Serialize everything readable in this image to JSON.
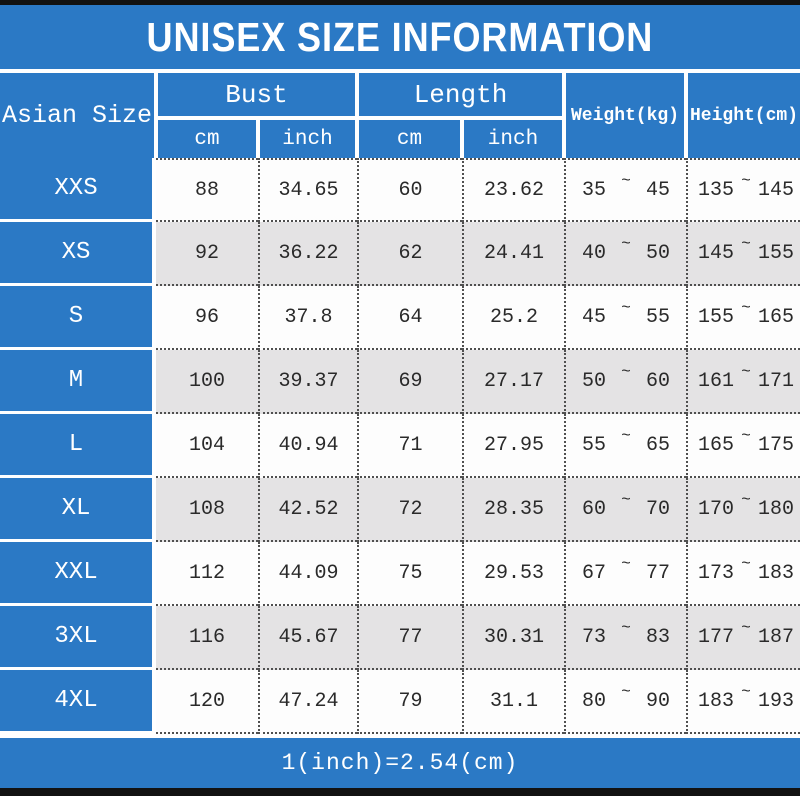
{
  "title": "UNISEX SIZE INFORMATION",
  "tilde": "~",
  "footer_note": "1(inch)=2.54(cm)",
  "colors": {
    "blue": "#2b79c5",
    "row_white": "#fdfdfd",
    "row_gray": "#e4e3e4",
    "bar_black": "#121212",
    "text": "#2a2a2a",
    "dot": "#4f4f4f"
  },
  "header": {
    "asian_size": "Asian Size",
    "bust": "Bust",
    "length": "Length",
    "cm": "cm",
    "inch": "inch",
    "weight": "Weight(kg)",
    "height": "Height(cm)"
  },
  "chart_data": {
    "type": "table",
    "title": "UNISEX SIZE INFORMATION",
    "columns": [
      "Asian Size",
      "Bust cm",
      "Bust inch",
      "Length cm",
      "Length inch",
      "Weight(kg) min",
      "Weight(kg) max",
      "Height(cm) min",
      "Height(cm) max"
    ],
    "rows": [
      {
        "size": "XXS",
        "bust_cm": "88",
        "bust_inch": "34.65",
        "length_cm": "60",
        "length_inch": "23.62",
        "weight_min": "35",
        "weight_max": "45",
        "height_min": "135",
        "height_max": "145"
      },
      {
        "size": "XS",
        "bust_cm": "92",
        "bust_inch": "36.22",
        "length_cm": "62",
        "length_inch": "24.41",
        "weight_min": "40",
        "weight_max": "50",
        "height_min": "145",
        "height_max": "155"
      },
      {
        "size": "S",
        "bust_cm": "96",
        "bust_inch": "37.8",
        "length_cm": "64",
        "length_inch": "25.2",
        "weight_min": "45",
        "weight_max": "55",
        "height_min": "155",
        "height_max": "165"
      },
      {
        "size": "M",
        "bust_cm": "100",
        "bust_inch": "39.37",
        "length_cm": "69",
        "length_inch": "27.17",
        "weight_min": "50",
        "weight_max": "60",
        "height_min": "161",
        "height_max": "171"
      },
      {
        "size": "L",
        "bust_cm": "104",
        "bust_inch": "40.94",
        "length_cm": "71",
        "length_inch": "27.95",
        "weight_min": "55",
        "weight_max": "65",
        "height_min": "165",
        "height_max": "175"
      },
      {
        "size": "XL",
        "bust_cm": "108",
        "bust_inch": "42.52",
        "length_cm": "72",
        "length_inch": "28.35",
        "weight_min": "60",
        "weight_max": "70",
        "height_min": "170",
        "height_max": "180"
      },
      {
        "size": "XXL",
        "bust_cm": "112",
        "bust_inch": "44.09",
        "length_cm": "75",
        "length_inch": "29.53",
        "weight_min": "67",
        "weight_max": "77",
        "height_min": "173",
        "height_max": "183"
      },
      {
        "size": "3XL",
        "bust_cm": "116",
        "bust_inch": "45.67",
        "length_cm": "77",
        "length_inch": "30.31",
        "weight_min": "73",
        "weight_max": "83",
        "height_min": "177",
        "height_max": "187"
      },
      {
        "size": "4XL",
        "bust_cm": "120",
        "bust_inch": "47.24",
        "length_cm": "79",
        "length_inch": "31.1",
        "weight_min": "80",
        "weight_max": "90",
        "height_min": "183",
        "height_max": "193"
      }
    ],
    "note": "1(inch)=2.54(cm)"
  }
}
